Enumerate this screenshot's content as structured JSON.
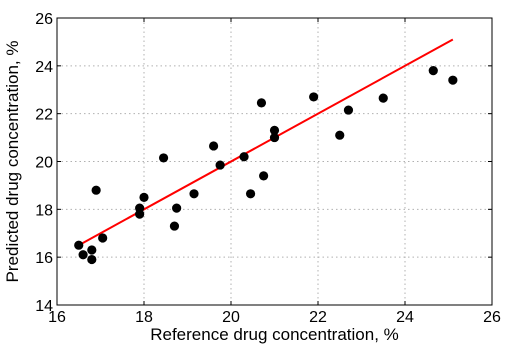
{
  "chart_data": {
    "type": "scatter",
    "xlabel": "Reference drug concentration, %",
    "ylabel": "Predicted drug concentration, %",
    "xlim": [
      16,
      26
    ],
    "ylim": [
      14,
      26
    ],
    "xticks": [
      "16",
      "18",
      "20",
      "22",
      "24",
      "26"
    ],
    "yticks": [
      "14",
      "16",
      "18",
      "20",
      "22",
      "24",
      "26"
    ],
    "grid": true,
    "points": [
      {
        "x": 16.5,
        "y": 16.5
      },
      {
        "x": 16.6,
        "y": 16.1
      },
      {
        "x": 16.8,
        "y": 16.3
      },
      {
        "x": 16.8,
        "y": 15.9
      },
      {
        "x": 16.9,
        "y": 18.8
      },
      {
        "x": 17.05,
        "y": 16.8
      },
      {
        "x": 17.9,
        "y": 18.05
      },
      {
        "x": 17.9,
        "y": 17.8
      },
      {
        "x": 18.0,
        "y": 18.5
      },
      {
        "x": 18.45,
        "y": 20.15
      },
      {
        "x": 18.7,
        "y": 17.3
      },
      {
        "x": 18.75,
        "y": 18.05
      },
      {
        "x": 19.15,
        "y": 18.65
      },
      {
        "x": 19.6,
        "y": 20.65
      },
      {
        "x": 19.75,
        "y": 19.85
      },
      {
        "x": 20.3,
        "y": 20.2
      },
      {
        "x": 20.45,
        "y": 18.65
      },
      {
        "x": 20.7,
        "y": 22.45
      },
      {
        "x": 20.75,
        "y": 19.4
      },
      {
        "x": 21.0,
        "y": 21.3
      },
      {
        "x": 21.0,
        "y": 21.0
      },
      {
        "x": 21.9,
        "y": 22.7
      },
      {
        "x": 22.5,
        "y": 21.1
      },
      {
        "x": 22.7,
        "y": 22.15
      },
      {
        "x": 23.5,
        "y": 22.65
      },
      {
        "x": 24.65,
        "y": 23.8
      },
      {
        "x": 25.1,
        "y": 23.4
      }
    ],
    "fit_line": {
      "x": [
        16.5,
        25.1
      ],
      "y": [
        16.5,
        25.1
      ],
      "color": "#ff0000"
    },
    "marker_color": "#000000"
  }
}
